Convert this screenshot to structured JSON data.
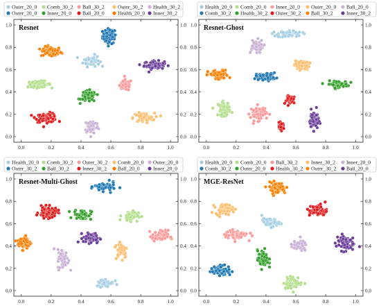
{
  "colors": {
    "Outer_20_0": "#a6cee3",
    "Outer_30_2": "#1f78b4",
    "Comb_30_2": "#b2df8a",
    "Inner_20_0": "#33a02c",
    "Ball_30_2": "#fb9a99",
    "Inner_30_2": "#e31a1c",
    "Outer_20_0b": "#fdbf6f",
    "Health_20_0": "#a6cee3",
    "Comb_20_0": "#1f78b4",
    "Ball_20_0": "#6a3d9a",
    "Health_30_2": "#cab2d6",
    "Outer_30_2b": "#ff7f00"
  },
  "chart_data": [
    {
      "type": "scatter",
      "title": "Resnet",
      "xlim": [
        -0.05,
        1.05
      ],
      "ylim": [
        -0.05,
        1.05
      ],
      "xticks": [
        "0.0",
        "0.2",
        "0.4",
        "0.6",
        "0.8",
        "1.0"
      ],
      "yticks": [
        "0.0",
        "0.2",
        "0.4",
        "0.6",
        "0.8",
        "1.0"
      ],
      "legend_position": "top",
      "legend": [
        {
          "label": "Outer_20_0",
          "color": "#a6cee3"
        },
        {
          "label": "Comb_30_2",
          "color": "#b2df8a"
        },
        {
          "label": "Ball_30_2",
          "color": "#fb9a99"
        },
        {
          "label": "Outer_30_2",
          "color": "#fdbf6f"
        },
        {
          "label": "Health_30_2",
          "color": "#cab2d6"
        },
        {
          "label": "Outer_20_0",
          "color": "#1f78b4"
        },
        {
          "label": "Inner_20_0",
          "color": "#33a02c"
        },
        {
          "label": "Ball_20_0",
          "color": "#e31a1c"
        },
        {
          "label": "Health_20_0",
          "color": "#ff7f00"
        },
        {
          "label": "Inner_30_2",
          "color": "#6a3d9a"
        }
      ],
      "series": [
        {
          "color": "#1f78b4",
          "cx": 0.59,
          "cy": 0.9,
          "rx": 0.05,
          "ry": 0.075,
          "n": 70
        },
        {
          "color": "#ff7f00",
          "cx": 0.2,
          "cy": 0.76,
          "rx": 0.075,
          "ry": 0.05,
          "n": 70
        },
        {
          "color": "#a6cee3",
          "cx": 0.47,
          "cy": 0.68,
          "rx": 0.06,
          "ry": 0.055,
          "n": 60
        },
        {
          "color": "#6a3d9a",
          "cx": 0.89,
          "cy": 0.64,
          "rx": 0.075,
          "ry": 0.04,
          "n": 70
        },
        {
          "color": "#b2df8a",
          "cx": 0.12,
          "cy": 0.47,
          "rx": 0.085,
          "ry": 0.03,
          "n": 60
        },
        {
          "color": "#fb9a99",
          "cx": 0.7,
          "cy": 0.46,
          "rx": 0.045,
          "ry": 0.055,
          "n": 60
        },
        {
          "color": "#33a02c",
          "cx": 0.45,
          "cy": 0.36,
          "rx": 0.055,
          "ry": 0.055,
          "n": 70
        },
        {
          "color": "#e31a1c",
          "cx": 0.17,
          "cy": 0.17,
          "rx": 0.08,
          "ry": 0.045,
          "n": 75
        },
        {
          "color": "#fdbf6f",
          "cx": 0.82,
          "cy": 0.17,
          "rx": 0.08,
          "ry": 0.045,
          "n": 65
        },
        {
          "color": "#cab2d6",
          "cx": 0.47,
          "cy": 0.09,
          "rx": 0.05,
          "ry": 0.07,
          "n": 60
        }
      ]
    },
    {
      "type": "scatter",
      "title": "Resnet-Ghost",
      "xlim": [
        -0.05,
        1.05
      ],
      "ylim": [
        -0.05,
        1.05
      ],
      "xticks": [
        "0.0",
        "0.2",
        "0.4",
        "0.6",
        "0.8",
        "1.0"
      ],
      "yticks": [
        "0.0",
        "0.2",
        "0.4",
        "0.6",
        "0.8",
        "1.0"
      ],
      "legend_position": "top",
      "legend": [
        {
          "label": "Health_20_0",
          "color": "#a6cee3"
        },
        {
          "label": "Comb_20_0",
          "color": "#b2df8a"
        },
        {
          "label": "Inner_20_0",
          "color": "#fb9a99"
        },
        {
          "label": "Outer_20_0",
          "color": "#fdbf6f"
        },
        {
          "label": "Ball_20_0",
          "color": "#cab2d6"
        },
        {
          "label": "Comb_30_2",
          "color": "#1f78b4"
        },
        {
          "label": "Health_30_2",
          "color": "#33a02c"
        },
        {
          "label": "Outer_30_2",
          "color": "#e31a1c"
        },
        {
          "label": "Ball_30_2",
          "color": "#ff7f00"
        },
        {
          "label": "Inner_30_2",
          "color": "#6a3d9a"
        }
      ],
      "series": [
        {
          "color": "#a6cee3",
          "cx": 0.56,
          "cy": 0.92,
          "rx": 0.09,
          "ry": 0.035,
          "n": 60
        },
        {
          "color": "#cab2d6",
          "cx": 0.33,
          "cy": 0.81,
          "rx": 0.055,
          "ry": 0.065,
          "n": 55
        },
        {
          "color": "#fdbf6f",
          "cx": 0.64,
          "cy": 0.64,
          "rx": 0.055,
          "ry": 0.045,
          "n": 60
        },
        {
          "color": "#ff7f00",
          "cx": 0.08,
          "cy": 0.55,
          "rx": 0.075,
          "ry": 0.05,
          "n": 70
        },
        {
          "color": "#1f78b4",
          "cx": 0.4,
          "cy": 0.54,
          "rx": 0.075,
          "ry": 0.035,
          "n": 60
        },
        {
          "color": "#33a02c",
          "cx": 0.88,
          "cy": 0.47,
          "rx": 0.075,
          "ry": 0.03,
          "n": 65
        },
        {
          "color": "#e31a1c",
          "cx": 0.57,
          "cy": 0.33,
          "rx": 0.035,
          "ry": 0.04,
          "n": 40
        },
        {
          "color": "#b2df8a",
          "cx": 0.12,
          "cy": 0.25,
          "rx": 0.045,
          "ry": 0.07,
          "n": 55
        },
        {
          "color": "#fb9a99",
          "cx": 0.35,
          "cy": 0.21,
          "rx": 0.06,
          "ry": 0.07,
          "n": 60
        },
        {
          "color": "#6a3d9a",
          "cx": 0.72,
          "cy": 0.15,
          "rx": 0.035,
          "ry": 0.095,
          "n": 55
        },
        {
          "color": "#e31a1c",
          "cx": 0.5,
          "cy": 0.09,
          "rx": 0.025,
          "ry": 0.035,
          "n": 25
        }
      ]
    },
    {
      "type": "scatter",
      "title": "Resnet-Multi-Ghost",
      "xlim": [
        -0.05,
        1.05
      ],
      "ylim": [
        -0.05,
        1.05
      ],
      "xticks": [
        "0.0",
        "0.2",
        "0.4",
        "0.6",
        "0.8",
        "1.0"
      ],
      "yticks": [
        "0.0",
        "0.2",
        "0.4",
        "0.6",
        "0.8",
        "1.0"
      ],
      "legend_position": "top",
      "legend": [
        {
          "label": "Health_20_0",
          "color": "#a6cee3"
        },
        {
          "label": "Comb_30_2",
          "color": "#b2df8a"
        },
        {
          "label": "Outer_30_2",
          "color": "#fb9a99"
        },
        {
          "label": "Comb_20_0",
          "color": "#fdbf6f"
        },
        {
          "label": "Outer_20_0",
          "color": "#cab2d6"
        },
        {
          "label": "Outer_30_2",
          "color": "#1f78b4"
        },
        {
          "label": "Ball_30_2",
          "color": "#33a02c"
        },
        {
          "label": "Inner_30_2",
          "color": "#e31a1c"
        },
        {
          "label": "Ball_20_0",
          "color": "#ff7f00"
        },
        {
          "label": "Inner_20_0",
          "color": "#6a3d9a"
        }
      ],
      "series": [
        {
          "color": "#1f78b4",
          "cx": 0.56,
          "cy": 0.93,
          "rx": 0.075,
          "ry": 0.045,
          "n": 65
        },
        {
          "color": "#e31a1c",
          "cx": 0.18,
          "cy": 0.7,
          "rx": 0.07,
          "ry": 0.055,
          "n": 70
        },
        {
          "color": "#33a02c",
          "cx": 0.41,
          "cy": 0.68,
          "rx": 0.065,
          "ry": 0.05,
          "n": 65
        },
        {
          "color": "#b2df8a",
          "cx": 0.73,
          "cy": 0.67,
          "rx": 0.06,
          "ry": 0.05,
          "n": 55
        },
        {
          "color": "#fb9a99",
          "cx": 0.93,
          "cy": 0.49,
          "rx": 0.06,
          "ry": 0.055,
          "n": 60
        },
        {
          "color": "#6a3d9a",
          "cx": 0.47,
          "cy": 0.47,
          "rx": 0.06,
          "ry": 0.05,
          "n": 65
        },
        {
          "color": "#ff7f00",
          "cx": 0.02,
          "cy": 0.43,
          "rx": 0.05,
          "ry": 0.065,
          "n": 65
        },
        {
          "color": "#fdbf6f",
          "cx": 0.67,
          "cy": 0.37,
          "rx": 0.045,
          "ry": 0.085,
          "n": 50
        },
        {
          "color": "#cab2d6",
          "cx": 0.28,
          "cy": 0.28,
          "rx": 0.04,
          "ry": 0.1,
          "n": 50
        },
        {
          "color": "#a6cee3",
          "cx": 0.56,
          "cy": 0.07,
          "rx": 0.065,
          "ry": 0.04,
          "n": 60
        }
      ]
    },
    {
      "type": "scatter",
      "title": "MGE-ResNet",
      "xlim": [
        -0.05,
        1.05
      ],
      "ylim": [
        -0.05,
        1.05
      ],
      "xticks": [
        "0.0",
        "0.2",
        "0.4",
        "0.6",
        "0.8",
        "1.0"
      ],
      "yticks": [
        "0.0",
        "0.2",
        "0.4",
        "0.6",
        "0.8",
        "1.0"
      ],
      "legend_position": "top",
      "legend": [
        {
          "label": "Health_20_0",
          "color": "#a6cee3"
        },
        {
          "label": "Comb_20_0",
          "color": "#b2df8a"
        },
        {
          "label": "Ball_30_2",
          "color": "#fb9a99"
        },
        {
          "label": "Inner_30_2",
          "color": "#fdbf6f"
        },
        {
          "label": "Inner_20_0",
          "color": "#cab2d6"
        },
        {
          "label": "Comb_30_2",
          "color": "#1f78b4"
        },
        {
          "label": "Outer_20_0",
          "color": "#33a02c"
        },
        {
          "label": "Health_30_2",
          "color": "#e31a1c"
        },
        {
          "label": "Outer_30_2",
          "color": "#ff7f00"
        },
        {
          "label": "Ball_20_0",
          "color": "#6a3d9a"
        }
      ],
      "series": [
        {
          "color": "#ff7f00",
          "cx": 0.47,
          "cy": 0.92,
          "rx": 0.07,
          "ry": 0.055,
          "n": 70
        },
        {
          "color": "#fdbf6f",
          "cx": 0.12,
          "cy": 0.73,
          "rx": 0.065,
          "ry": 0.05,
          "n": 60
        },
        {
          "color": "#e31a1c",
          "cx": 0.75,
          "cy": 0.72,
          "rx": 0.065,
          "ry": 0.06,
          "n": 65
        },
        {
          "color": "#a6cee3",
          "cx": 0.43,
          "cy": 0.61,
          "rx": 0.065,
          "ry": 0.04,
          "n": 60
        },
        {
          "color": "#fb9a99",
          "cx": 0.2,
          "cy": 0.5,
          "rx": 0.085,
          "ry": 0.045,
          "n": 65
        },
        {
          "color": "#6a3d9a",
          "cx": 0.93,
          "cy": 0.43,
          "rx": 0.065,
          "ry": 0.08,
          "n": 65
        },
        {
          "color": "#cab2d6",
          "cx": 0.62,
          "cy": 0.4,
          "rx": 0.06,
          "ry": 0.05,
          "n": 55
        },
        {
          "color": "#33a02c",
          "cx": 0.38,
          "cy": 0.28,
          "rx": 0.04,
          "ry": 0.09,
          "n": 60
        },
        {
          "color": "#1f78b4",
          "cx": 0.1,
          "cy": 0.18,
          "rx": 0.075,
          "ry": 0.05,
          "n": 70
        },
        {
          "color": "#b2df8a",
          "cx": 0.58,
          "cy": 0.07,
          "rx": 0.07,
          "ry": 0.06,
          "n": 55
        }
      ]
    }
  ]
}
